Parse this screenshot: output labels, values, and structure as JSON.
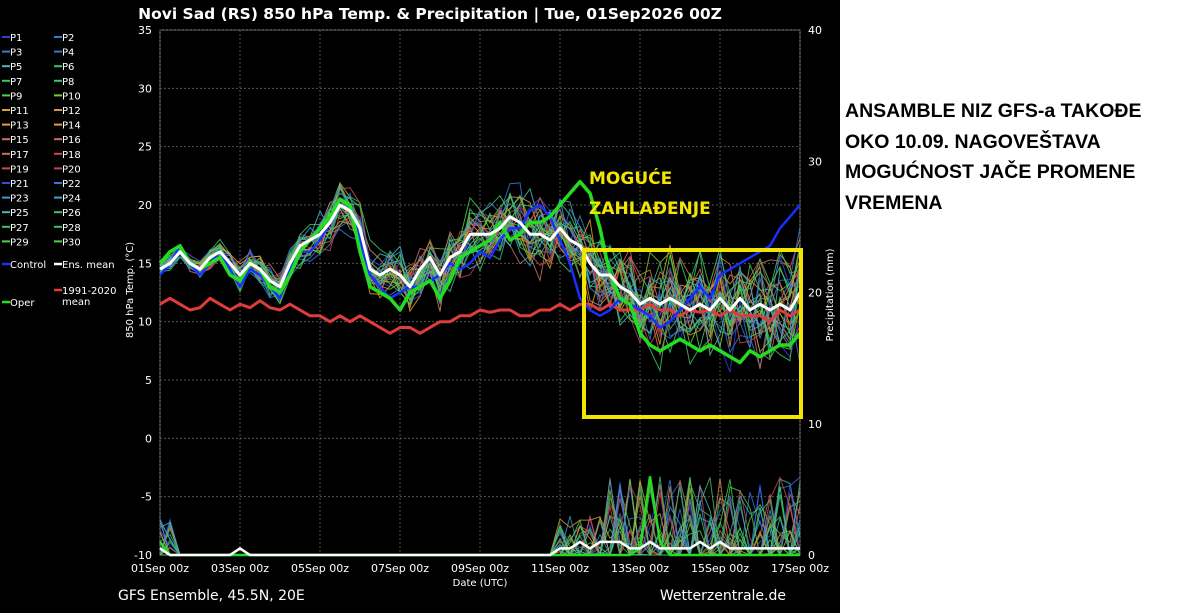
{
  "note_lines": [
    "ANSAMBLE NIZ GFS-a TAKOĐE",
    "OKO 10.09. NAGOVEŠTAVA",
    "MOGUĆNOST JAČE PROMENE",
    "VREMENA"
  ],
  "chart_data": {
    "type": "line",
    "title": "Novi Sad  (RS)  850 hPa Temp. & Precipitation | Tue, 01Sep2026 00Z",
    "footer_left": "GFS Ensemble, 45.5N, 20E",
    "footer_right": "Wetterzentrale.de",
    "xlabel": "Date (UTC)",
    "ylabel_left": "850 hPa Temp. (°C)",
    "ylabel_right": "Precipitation (mm)",
    "ylim_left": [
      -10,
      35
    ],
    "ylim_right": [
      0,
      40
    ],
    "y_ticks_left": [
      "35",
      "30",
      "25",
      "20",
      "15",
      "10",
      "5",
      "0",
      "-5",
      "-10"
    ],
    "y_ticks_right": [
      "40",
      "30",
      "20",
      "10",
      "0"
    ],
    "x_ticks": [
      "01Sep 00z",
      "03Sep 00z",
      "05Sep 00z",
      "07Sep 00z",
      "09Sep 00z",
      "11Sep 00z",
      "13Sep 00z",
      "15Sep 00z",
      "17Sep 00z"
    ],
    "grid": true,
    "annotation": {
      "text_lines": [
        "MOGUĆE",
        "ZAHLAĐENJE"
      ],
      "box_color": "#f2e600",
      "box_x_range": [
        "12Sep 00z",
        "17Sep 00z"
      ],
      "box_y_range": [
        1.5,
        16
      ]
    },
    "legend_entries": [
      {
        "label": "P1",
        "color": "#2f3fe0"
      },
      {
        "label": "P2",
        "color": "#3a78d8"
      },
      {
        "label": "P3",
        "color": "#3a78d8"
      },
      {
        "label": "P4",
        "color": "#3a78d8"
      },
      {
        "label": "P5",
        "color": "#46b8c0"
      },
      {
        "label": "P6",
        "color": "#3ec46a"
      },
      {
        "label": "P7",
        "color": "#3ec46a"
      },
      {
        "label": "P8",
        "color": "#3ec46a"
      },
      {
        "label": "P9",
        "color": "#4fd04a"
      },
      {
        "label": "P10",
        "color": "#7acb30"
      },
      {
        "label": "P11",
        "color": "#e0a030"
      },
      {
        "label": "P12",
        "color": "#d89050"
      },
      {
        "label": "P13",
        "color": "#e0a030"
      },
      {
        "label": "P14",
        "color": "#e0a030"
      },
      {
        "label": "P15",
        "color": "#c87060"
      },
      {
        "label": "P16",
        "color": "#c87060"
      },
      {
        "label": "P17",
        "color": "#d07050"
      },
      {
        "label": "P18",
        "color": "#d04848"
      },
      {
        "label": "P19",
        "color": "#d04848"
      },
      {
        "label": "P20",
        "color": "#c04060"
      },
      {
        "label": "P21",
        "color": "#3050e0"
      },
      {
        "label": "P22",
        "color": "#3a78d8"
      },
      {
        "label": "P23",
        "color": "#3a9ad8"
      },
      {
        "label": "P24",
        "color": "#3aa8d0"
      },
      {
        "label": "P25",
        "color": "#46b8c0"
      },
      {
        "label": "P26",
        "color": "#3ec46a"
      },
      {
        "label": "P27",
        "color": "#3ec46a"
      },
      {
        "label": "P28",
        "color": "#3ec46a"
      },
      {
        "label": "P29",
        "color": "#4fd04a"
      },
      {
        "label": "P30",
        "color": "#4fd04a"
      },
      {
        "label": "Control",
        "color": "#1530ff"
      },
      {
        "label": "Ens. mean",
        "color": "#ffffff"
      },
      {
        "label": "Oper",
        "color": "#22dd22"
      },
      {
        "label": "1991-2020 mean",
        "color": "#e03c3c"
      }
    ],
    "x": [
      0,
      0.25,
      0.5,
      0.75,
      1,
      1.25,
      1.5,
      1.75,
      2,
      2.25,
      2.5,
      2.75,
      3,
      3.25,
      3.5,
      3.75,
      4,
      4.25,
      4.5,
      4.75,
      5,
      5.25,
      5.5,
      5.75,
      6,
      6.25,
      6.5,
      6.75,
      7,
      7.25,
      7.5,
      7.75,
      8,
      8.25,
      8.5,
      8.75,
      9,
      9.25,
      9.5,
      9.75,
      10,
      10.25,
      10.5,
      10.75,
      11,
      11.25,
      11.5,
      11.75,
      12,
      12.25,
      12.5,
      12.75,
      13,
      13.25,
      13.5,
      13.75,
      14,
      14.25,
      14.5,
      14.75,
      15,
      15.25,
      15.5,
      15.75,
      16
    ],
    "x_unit": "days since 01Sep 00z",
    "series": [
      {
        "name": "Ens. mean",
        "color": "#ffffff",
        "width": 3,
        "values": [
          14.5,
          15,
          16,
          15,
          14.5,
          15.5,
          16,
          15,
          14,
          15,
          14.5,
          13.5,
          13,
          15,
          16.5,
          17,
          17.5,
          18.5,
          20,
          19.5,
          18,
          14.5,
          14,
          14.5,
          14,
          13,
          14.5,
          15.5,
          14,
          15.5,
          16,
          17.5,
          17.5,
          17.5,
          18,
          19,
          18.5,
          17.5,
          17.5,
          17,
          18,
          17,
          16.5,
          15,
          14,
          14,
          13,
          12.5,
          11.5,
          12,
          11.5,
          12,
          11.5,
          11,
          11.5,
          11,
          12,
          11,
          12,
          11,
          11.5,
          11,
          11.5,
          11,
          12.5
        ]
      },
      {
        "name": "Control",
        "color": "#1530ff",
        "width": 2.5,
        "values": [
          14,
          15,
          16.5,
          15,
          14,
          15,
          16,
          14.5,
          13,
          14.5,
          14,
          13,
          12,
          14.5,
          16,
          16,
          17,
          18.5,
          20.5,
          20,
          17,
          14,
          13,
          12,
          12.5,
          13,
          13,
          13.5,
          14,
          15,
          14.5,
          15,
          16,
          15.5,
          17,
          18,
          18,
          19.5,
          20,
          19,
          17,
          15,
          12,
          11,
          10.5,
          11,
          12,
          11.5,
          11,
          10.5,
          9.5,
          10,
          11,
          12,
          13,
          12,
          14,
          14.5,
          15,
          15.5,
          16,
          16.5,
          18,
          19,
          20
        ]
      },
      {
        "name": "Oper",
        "color": "#22dd22",
        "width": 3.5,
        "values": [
          15,
          16,
          16.5,
          15,
          14.5,
          15,
          15.5,
          14,
          13.5,
          15,
          14.5,
          13,
          12.5,
          14,
          16,
          17,
          18,
          19,
          20.5,
          20,
          16,
          13,
          12.5,
          12,
          11,
          12.5,
          13,
          13.5,
          12,
          13.5,
          15.5,
          16,
          16.5,
          17,
          18.5,
          17,
          17.5,
          18.5,
          18.5,
          19,
          20,
          21,
          22,
          21,
          18,
          14,
          12,
          11.5,
          9,
          8,
          7.5,
          8,
          8.5,
          8,
          7.5,
          8,
          7.5,
          7,
          6.5,
          7.5,
          7,
          7.5,
          8,
          8,
          9
        ]
      },
      {
        "name": "1991-2020 mean",
        "color": "#e03c3c",
        "width": 3,
        "values": [
          11.5,
          12,
          11.5,
          11,
          11.2,
          12,
          11.5,
          11,
          11.5,
          11.2,
          11.8,
          11.2,
          11,
          11.5,
          11,
          10.5,
          10.5,
          10,
          10.5,
          10,
          10.5,
          10,
          9.5,
          9,
          9.5,
          9.5,
          9,
          9.5,
          10,
          10,
          10.5,
          10.5,
          11,
          10.8,
          11,
          11,
          10.5,
          10.5,
          11,
          11,
          11.5,
          11,
          11.5,
          11.5,
          11,
          11.5,
          11,
          11,
          11,
          11.5,
          11,
          11,
          10.5,
          11,
          10.8,
          11,
          10.5,
          11,
          10.5,
          10.5,
          10.5,
          10,
          11,
          10.5,
          11
        ]
      }
    ],
    "members_count": 30,
    "precip_series": [
      {
        "name": "Oper precip",
        "color": "#22dd22",
        "values": [
          1,
          0,
          0,
          0,
          0,
          0,
          0,
          0,
          0,
          0,
          0,
          0,
          0,
          0,
          0,
          0,
          0,
          0,
          0,
          0,
          0,
          0,
          0,
          0,
          0,
          0,
          0,
          0,
          0,
          0,
          0,
          0,
          0,
          0,
          0,
          0,
          0,
          0,
          0,
          0,
          0,
          0,
          0,
          0,
          0,
          0,
          0,
          0,
          0.5,
          6,
          1,
          0,
          0,
          0,
          0,
          0,
          0,
          0,
          0,
          0,
          0,
          0,
          0,
          0,
          0
        ]
      },
      {
        "name": "Ens. mean precip",
        "color": "#ffffff",
        "values": [
          0.5,
          0,
          0,
          0,
          0,
          0,
          0,
          0,
          0.5,
          0,
          0,
          0,
          0,
          0,
          0,
          0,
          0,
          0,
          0,
          0,
          0,
          0,
          0,
          0,
          0,
          0,
          0,
          0,
          0,
          0,
          0,
          0,
          0,
          0,
          0,
          0,
          0,
          0,
          0,
          0,
          0.5,
          0.5,
          1,
          0.5,
          1,
          1,
          1,
          0.5,
          0.5,
          1,
          0.5,
          0.5,
          0.5,
          0.5,
          1,
          0.5,
          1,
          0.5,
          0.5,
          0.5,
          0.5,
          0.5,
          0.5,
          0.5,
          0.5
        ]
      }
    ]
  }
}
